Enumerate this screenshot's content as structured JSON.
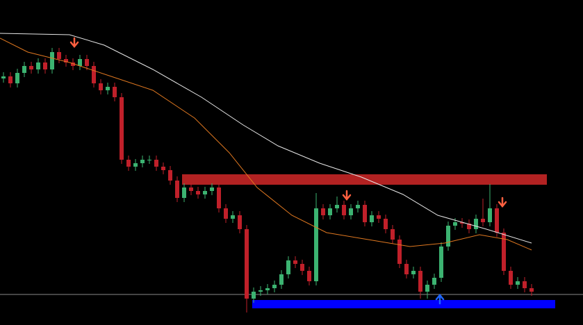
{
  "chart_data": {
    "type": "candlestick",
    "xlim": [
      -0.5,
      83.4
    ],
    "ylim": [
      0,
      468
    ],
    "up_color": "#3cb371",
    "down_color": "#c0202a",
    "x": [
      0,
      1,
      2,
      3,
      4,
      5,
      6,
      7,
      8,
      9,
      10,
      11,
      12,
      13,
      14,
      15,
      16,
      17,
      18,
      19,
      20,
      21,
      22,
      23,
      24,
      25,
      26,
      27,
      28,
      29,
      30,
      31,
      32,
      33,
      34,
      35,
      36,
      37,
      38,
      39,
      40,
      41,
      42,
      43,
      44,
      45,
      46,
      47,
      48,
      49,
      50,
      51,
      52,
      53,
      54,
      55,
      56,
      57,
      58,
      59,
      60,
      61,
      62,
      63,
      64,
      65,
      66,
      67,
      68,
      69,
      70,
      71,
      72,
      73,
      74,
      75,
      76
    ],
    "open": [
      355,
      358,
      348,
      363,
      373,
      368,
      378,
      368,
      393,
      383,
      378,
      373,
      383,
      373,
      348,
      338,
      343,
      328,
      238,
      228,
      233,
      238,
      238,
      228,
      223,
      208,
      183,
      198,
      193,
      188,
      193,
      198,
      168,
      153,
      158,
      138,
      38,
      48,
      50,
      53,
      58,
      73,
      93,
      88,
      78,
      63,
      168,
      158,
      168,
      173,
      158,
      168,
      173,
      148,
      158,
      153,
      138,
      123,
      88,
      73,
      78,
      48,
      58,
      68,
      113,
      143,
      148,
      146,
      138,
      153,
      148,
      168,
      133,
      78,
      58,
      63,
      53
    ],
    "high": [
      364,
      364,
      369,
      379,
      379,
      384,
      384,
      399,
      399,
      389,
      384,
      389,
      389,
      379,
      354,
      349,
      349,
      334,
      244,
      239,
      244,
      244,
      244,
      234,
      229,
      214,
      204,
      204,
      199,
      199,
      204,
      204,
      174,
      164,
      164,
      144,
      54,
      56,
      59,
      64,
      79,
      99,
      99,
      94,
      84,
      190,
      174,
      174,
      185,
      179,
      174,
      179,
      179,
      164,
      164,
      159,
      144,
      129,
      94,
      84,
      84,
      64,
      74,
      119,
      149,
      154,
      154,
      152,
      159,
      182,
      203,
      174,
      139,
      84,
      69,
      69,
      59
    ],
    "low": [
      349,
      342,
      342,
      357,
      362,
      362,
      362,
      362,
      377,
      372,
      367,
      367,
      367,
      342,
      332,
      332,
      322,
      232,
      222,
      222,
      227,
      232,
      222,
      217,
      202,
      177,
      177,
      187,
      182,
      182,
      187,
      162,
      147,
      147,
      132,
      18,
      32,
      42,
      44,
      47,
      52,
      67,
      82,
      72,
      57,
      57,
      152,
      152,
      162,
      152,
      152,
      162,
      142,
      142,
      147,
      132,
      117,
      82,
      67,
      67,
      38,
      38,
      52,
      62,
      107,
      137,
      140,
      132,
      132,
      142,
      142,
      127,
      72,
      52,
      52,
      47,
      42
    ],
    "close": [
      358,
      348,
      363,
      373,
      368,
      378,
      368,
      393,
      383,
      378,
      373,
      383,
      373,
      348,
      338,
      343,
      328,
      238,
      228,
      233,
      238,
      238,
      228,
      223,
      208,
      183,
      198,
      193,
      188,
      193,
      198,
      168,
      153,
      158,
      138,
      38,
      48,
      50,
      53,
      58,
      73,
      93,
      88,
      78,
      63,
      168,
      158,
      168,
      173,
      158,
      168,
      173,
      148,
      158,
      153,
      138,
      123,
      88,
      73,
      78,
      48,
      58,
      68,
      113,
      143,
      148,
      146,
      138,
      153,
      148,
      168,
      133,
      78,
      58,
      63,
      53,
      48
    ],
    "lines": [
      {
        "color": "#e8e8e8",
        "x": [
          -0.5,
          9.5,
          14.5,
          21.5,
          28.5,
          34.5,
          39.5,
          45.5,
          51.5,
          57.5,
          62.5,
          69.5,
          76
        ],
        "values": [
          420,
          418,
          403,
          368,
          328,
          288,
          258,
          233,
          213,
          188,
          158,
          138,
          118
        ]
      },
      {
        "color": "#e07820",
        "x": [
          -0.5,
          3.5,
          9.5,
          15.5,
          21.5,
          27.5,
          32.5,
          36.5,
          41.5,
          46.5,
          52.5,
          58.5,
          63.5,
          68.5,
          72.5,
          76
        ],
        "values": [
          413,
          393,
          378,
          358,
          338,
          298,
          248,
          198,
          158,
          133,
          123,
          113,
          118,
          130,
          123,
          108
        ]
      }
    ],
    "zones": [
      {
        "color": "#b22222",
        "x": [
          25.7,
          78.2
        ],
        "y": [
          202,
          217
        ]
      },
      {
        "color": "#0000ff",
        "x": [
          35.8,
          79.4
        ],
        "y": [
          24,
          36
        ]
      }
    ],
    "level": {
      "color": "#8a8a8a",
      "value": 44
    },
    "arrows": [
      {
        "x": 10.2,
        "y": 403,
        "direction": "down",
        "color": "#ff6040"
      },
      {
        "x": 49.4,
        "y": 183,
        "direction": "down",
        "color": "#ff6040"
      },
      {
        "x": 71.8,
        "y": 173,
        "direction": "down",
        "color": "#ff6040"
      },
      {
        "x": 62.8,
        "y": 41,
        "direction": "up",
        "color": "#1e64ff"
      }
    ]
  }
}
